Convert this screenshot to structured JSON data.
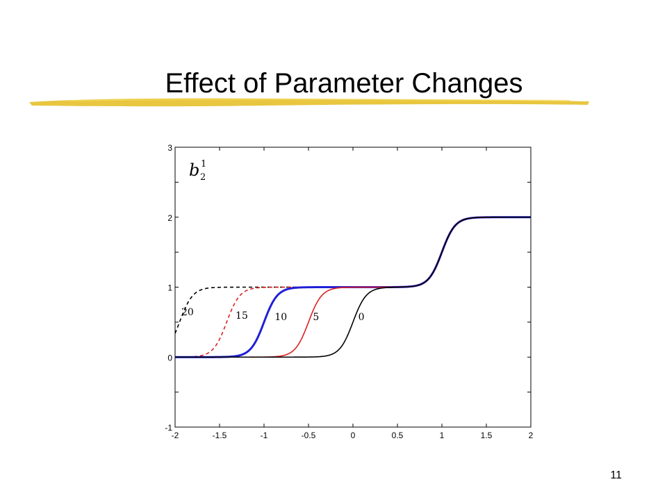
{
  "slide": {
    "title": "Effect of Parameter Changes",
    "page_number": "11"
  },
  "colors": {
    "underline": "#e6c02a",
    "black": "#000000",
    "red": "#dd1f1f",
    "blue": "#2020d8"
  },
  "chart_data": {
    "type": "line",
    "title": "",
    "xlabel": "",
    "ylabel": "",
    "xlim": [
      -2,
      2
    ],
    "ylim": [
      -1,
      3
    ],
    "grid": false,
    "xticks": [
      -2,
      -1.5,
      -1,
      -0.5,
      0,
      0.5,
      1,
      1.5,
      2
    ],
    "xtick_labels": [
      "-2",
      "-1.5",
      "-1",
      "-0.5",
      "0",
      "0.5",
      "1",
      "1.5",
      "2"
    ],
    "yticks": [
      -1,
      0,
      1,
      2,
      3
    ],
    "ytick_labels": [
      "-1",
      "0",
      "1",
      "2",
      "3"
    ],
    "annotation": {
      "base": "b",
      "sup": "1",
      "sub": "2"
    },
    "series": [
      {
        "name": "20",
        "color": "#000000",
        "dash": true,
        "width": 1.6,
        "center": -1.95,
        "label_x": -1.93,
        "label_y": 0.6
      },
      {
        "name": "15",
        "color": "#dd1f1f",
        "dash": true,
        "width": 1.6,
        "center": -1.42,
        "label_x": -1.32,
        "label_y": 0.55
      },
      {
        "name": "10",
        "color": "#2020d8",
        "dash": false,
        "width": 3,
        "center": -1.0,
        "label_x": -0.88,
        "label_y": 0.53
      },
      {
        "name": "5",
        "color": "#dd1f1f",
        "dash": false,
        "width": 1.6,
        "center": -0.5,
        "label_x": -0.45,
        "label_y": 0.53
      },
      {
        "name": "0",
        "color": "#000000",
        "dash": false,
        "width": 1.6,
        "center": 0.0,
        "label_x": 0.06,
        "label_y": 0.53
      }
    ],
    "upper_step": {
      "center": 1.0,
      "from": 1,
      "to": 2
    }
  }
}
